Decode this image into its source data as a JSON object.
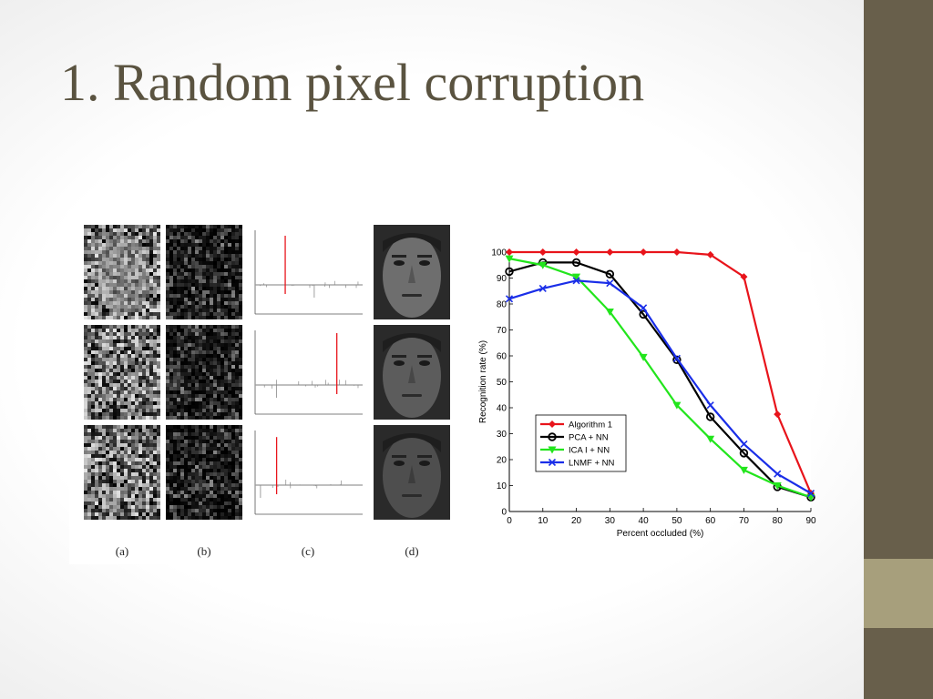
{
  "slide": {
    "title": "1. Random pixel corruption",
    "colors": {
      "sidebar": "#685f4b",
      "sidebar_accent": "#a79f7c",
      "title": "#5a5340"
    }
  },
  "figure": {
    "panel_labels": [
      "(a)",
      "(b)",
      "(c)",
      "(d)"
    ],
    "noise_tile_icons": [
      "corrupted-face-image",
      "noise-residual-image"
    ],
    "face_tile_icon": "face-photo"
  },
  "chart_data": {
    "type": "line",
    "x": [
      0,
      10,
      20,
      30,
      40,
      50,
      60,
      70,
      80,
      90
    ],
    "xlabel": "Percent occluded (%)",
    "ylabel": "Recognition rate (%)",
    "xlim": [
      0,
      90
    ],
    "ylim": [
      0,
      100
    ],
    "xticks": [
      "0",
      "10",
      "20",
      "30",
      "40",
      "50",
      "60",
      "70",
      "80",
      "90"
    ],
    "yticks": [
      "0",
      "10",
      "20",
      "30",
      "40",
      "50",
      "60",
      "70",
      "80",
      "90",
      "100"
    ],
    "legend_position": "lower-left",
    "grid": false,
    "series": [
      {
        "name": "Algorithm 1",
        "color": "#e8141b",
        "marker": "diamond",
        "values": [
          100,
          100,
          100,
          100,
          100,
          100,
          99,
          90.5,
          37.5,
          7
        ]
      },
      {
        "name": "PCA + NN",
        "color": "#000000",
        "marker": "circle",
        "values": [
          92.5,
          96,
          96,
          91.5,
          76,
          58.5,
          36.5,
          22.5,
          9.5,
          5.5
        ]
      },
      {
        "name": "ICA I + NN",
        "color": "#22e51c",
        "marker": "triangle-down",
        "values": [
          97.5,
          95,
          90.5,
          77,
          59.5,
          41,
          28,
          16,
          10,
          5.5
        ]
      },
      {
        "name": "LNMF + NN",
        "color": "#1a2ee8",
        "marker": "x",
        "values": [
          82,
          86,
          89,
          88,
          78.5,
          59,
          41,
          26,
          14.5,
          7
        ]
      }
    ]
  }
}
